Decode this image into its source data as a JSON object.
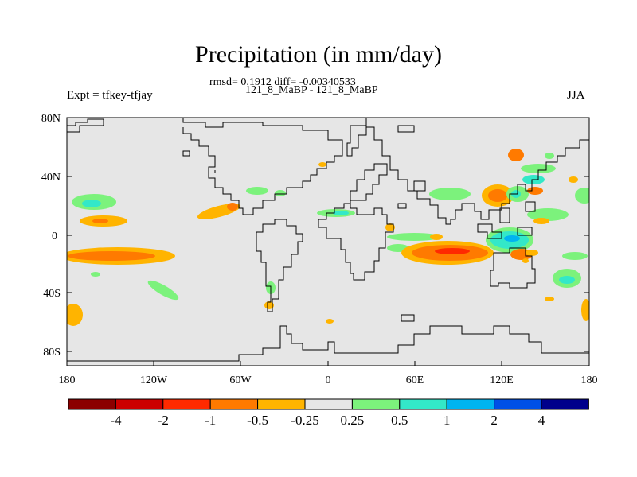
{
  "title": "Precipitation (in mm/day)",
  "subtitle": "rmsd= 0.1912 diff= -0.00340533",
  "period_label": "121_8_MaBP - 121_8_MaBP",
  "left_label": "Expt = tfkey-tfjay",
  "right_label": "JJA",
  "y_ticks": [
    "80N",
    "40N",
    "0",
    "40S",
    "80S"
  ],
  "x_ticks": [
    "180",
    "120W",
    "60W",
    "0",
    "60E",
    "120E",
    "180"
  ],
  "colorbar": {
    "colors": [
      "#8b0000",
      "#cc0000",
      "#ff2a00",
      "#ff7a00",
      "#ffb400",
      "#e6e6e6",
      "#7cf27c",
      "#33e8c8",
      "#00b4f0",
      "#0050e6",
      "#00008b"
    ],
    "labels": [
      "-4",
      "-2",
      "-1",
      "-0.5",
      "-0.25",
      "0.25",
      "0.5",
      "1",
      "2",
      "4"
    ]
  },
  "colors": {
    "background_field": "#e6e6e6",
    "coastline": "#000000"
  },
  "chart_data": {
    "type": "heatmap",
    "title": "Precipitation (in mm/day)",
    "subtitle": "rmsd= 0.1912 diff= -0.00340533",
    "xlabel": "",
    "ylabel": "",
    "x_range": [
      -180,
      180
    ],
    "y_range": [
      -90,
      90
    ],
    "contour_levels": [
      -4,
      -2,
      -1,
      -0.5,
      -0.25,
      0.25,
      0.5,
      1,
      2,
      4
    ],
    "features": [
      {
        "lon": 100,
        "lat": -12,
        "level": -1,
        "desc_level_color": "#ff2a00"
      },
      {
        "lon": 113,
        "lat": 27,
        "level": -0.5
      },
      {
        "lon": -160,
        "lat": -15,
        "level": -0.5
      },
      {
        "lon": 120,
        "lat": -5,
        "level": 0.5
      },
      {
        "lon": -165,
        "lat": 22,
        "level": 0.5
      }
    ]
  }
}
